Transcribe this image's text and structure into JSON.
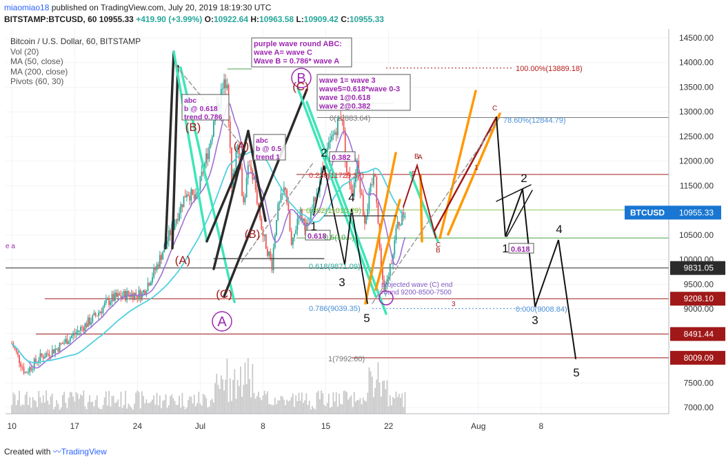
{
  "header": {
    "user": "miaomiao18",
    "published": "published on TradingView.com, July 20, 2019 18:19:30 UTC",
    "symbol": "BITSTAMP:BTCUSD, 60",
    "last": "10955.33",
    "change": "+419.90 (+3.99%)",
    "open_label": "O:",
    "open": "10922.64",
    "high_label": "H:",
    "high": "10963.58",
    "low_label": "L:",
    "low": "10909.42",
    "close_label": "C:",
    "close": "10955.33"
  },
  "legend": {
    "title": "Bitcoin / U.S. Dollar, 60, BITSTAMP",
    "items": [
      "Vol (20)",
      "MA (50, close)",
      "MA (200, close)",
      "Pivots (60, 30)"
    ]
  },
  "footer": {
    "created_with": "Created with",
    "brand": "TradingView"
  },
  "colors": {
    "wave_black": "#2b2b2b",
    "wave_cyan": "#3ee6b8",
    "wave_orange": "#ff9800",
    "ma50": "#9c6fd6",
    "ma200": "#4dd0e1",
    "purple": "#9c27b0",
    "darkred": "#a01818",
    "fib_blue": "#4a90d9",
    "up": "#26a69a",
    "down": "#ef5350",
    "volume": "#c8c8c8"
  },
  "chart_data": {
    "type": "candlestick",
    "x_ticks": [
      "10",
      "17",
      "24",
      "Jul",
      "8",
      "15",
      "22",
      "Aug",
      "8"
    ],
    "y_ticks": [
      "14500.00",
      "14000.00",
      "13500.00",
      "13000.00",
      "12500.00",
      "12000.00",
      "11500.00",
      "11000.00",
      "10500.00",
      "10000.00",
      "9500.00",
      "9000.00",
      "8500.00",
      "8000.00",
      "7500.00",
      "7000.00"
    ],
    "ylim": [
      6900,
      14700
    ],
    "price_labels": [
      {
        "text": "BTCUSD",
        "value": "10955.33",
        "price": 10955.33,
        "color": "#1976d2"
      },
      {
        "text": "",
        "value": "9831.05",
        "price": 9831.05,
        "color": "#2b2b2b"
      },
      {
        "text": "",
        "value": "9208.10",
        "price": 9208.1,
        "color": "#a01818"
      },
      {
        "text": "",
        "value": "8491.44",
        "price": 8491.44,
        "color": "#a01818"
      },
      {
        "text": "",
        "value": "8009.09",
        "price": 8009.09,
        "color": "#a01818"
      }
    ],
    "fib_levels": [
      {
        "label": "100.00%(13889.18)",
        "price": 13889.18,
        "color": "#b71c1c"
      },
      {
        "label": "78.60%(12844.79)",
        "price": 12844.79,
        "color": "#4a90d9"
      },
      {
        "label": "0(12883.64)",
        "price": 12883.64,
        "color": "#777777"
      },
      {
        "label": "0.236(11729.37)",
        "price": 11729.37,
        "color": "#d32f2f"
      },
      {
        "label": "0.382(11010.29)",
        "price": 11010.29,
        "color": "#7cb342"
      },
      {
        "label": "0.5(10...)",
        "price": 10440,
        "color": "#43a047"
      },
      {
        "label": "0.618(9871.09)",
        "price": 9871.09,
        "color": "#26a69a"
      },
      {
        "label": "0.786(9039.35)",
        "price": 9039.35,
        "color": "#4a90d9"
      },
      {
        "label": "0.000(9008.84)",
        "price": 9008.84,
        "color": "#4a90d9"
      },
      {
        "label": "1(7992.60)",
        "price": 7992.6,
        "color": "#777777"
      }
    ],
    "annotations": {
      "purple_box": [
        "purple wave round ABC:",
        "wave A= wave C",
        "Wave B = 0.786* wave A"
      ],
      "wave3_box": [
        "wave 1= wave 3",
        "wave5=0.618*wave 0-3",
        "wave 1@0.618",
        "wave 2@0.382"
      ],
      "abc1_box": [
        "abc",
        "b @ 0.618",
        "trend 0.786"
      ],
      "abc2_box": [
        "abc",
        "b @ 0.5",
        "trend 1"
      ],
      "small_boxes": [
        "0.382",
        "0.618",
        "0.618"
      ],
      "projected": [
        "projected wave (C) end",
        "round 9200-8500-7500"
      ],
      "big_letters": [
        "A",
        "B"
      ],
      "red_letters": [
        "(A)",
        "(B)",
        "(C)",
        "(B)",
        "(A)",
        "(C)"
      ],
      "black_numbers": [
        "1",
        "2",
        "3",
        "4",
        "5",
        "1",
        "2",
        "3",
        "4",
        "5"
      ],
      "tiny_letters": [
        "A",
        "B",
        "C",
        "B",
        "C",
        "e a",
        "3",
        "5",
        "1"
      ]
    }
  }
}
